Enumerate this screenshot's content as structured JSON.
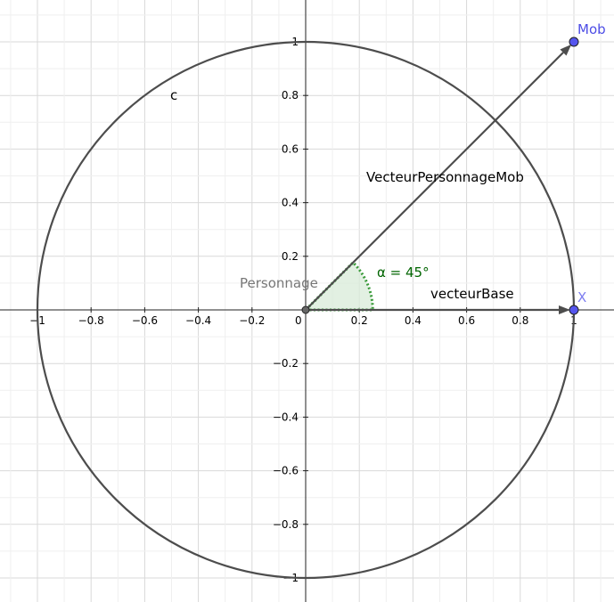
{
  "graph": {
    "x_ticks": [
      {
        "value": -1,
        "label": "−1"
      },
      {
        "value": -0.8,
        "label": "−0.8"
      },
      {
        "value": -0.6,
        "label": "−0.6"
      },
      {
        "value": -0.4,
        "label": "−0.4"
      },
      {
        "value": -0.2,
        "label": "−0.2"
      },
      {
        "value": 0,
        "label": "0"
      },
      {
        "value": 0.2,
        "label": "0.2"
      },
      {
        "value": 0.4,
        "label": "0.4"
      },
      {
        "value": 0.6,
        "label": "0.6"
      },
      {
        "value": 0.8,
        "label": "0.8"
      },
      {
        "value": 1,
        "label": "1"
      }
    ],
    "y_ticks": [
      {
        "value": 1,
        "label": "1"
      },
      {
        "value": 0.8,
        "label": "0.8"
      },
      {
        "value": 0.6,
        "label": "0.6"
      },
      {
        "value": 0.4,
        "label": "0.4"
      },
      {
        "value": 0.2,
        "label": "0.2"
      },
      {
        "value": -0.2,
        "label": "−0.2"
      },
      {
        "value": -0.4,
        "label": "−0.4"
      },
      {
        "value": -0.6,
        "label": "−0.6"
      },
      {
        "value": -0.8,
        "label": "−0.8"
      },
      {
        "value": -1,
        "label": "−1"
      }
    ],
    "grid_step": 0.2,
    "circle": {
      "label": "c",
      "center": [
        0,
        0
      ],
      "radius": 1,
      "color": "#4d4d4d"
    },
    "points": {
      "personnage": {
        "label": "Personnage",
        "x": 0,
        "y": 0,
        "color": "#666666",
        "label_color": "#777777"
      },
      "mob": {
        "label": "Mob",
        "x": 1,
        "y": 1,
        "color": "#5555ee",
        "label_color": "#4d4de6"
      },
      "x_point": {
        "label": "X",
        "x": 1,
        "y": 0,
        "color": "#5555ee",
        "label_color": "#7d7df0"
      }
    },
    "vectors": {
      "vecteur_personnage_mob": {
        "label": "VecteurPersonnageMob",
        "from": [
          0,
          0
        ],
        "to": [
          1,
          1
        ],
        "color": "#4d4d4d"
      },
      "vecteur_base": {
        "label": "vecteurBase",
        "from": [
          0,
          0
        ],
        "to": [
          1,
          0
        ],
        "color": "#4d4d4d"
      }
    },
    "angle": {
      "label": "α = 45°",
      "degrees": 45,
      "color": "#006400",
      "fill": "#d8ebd8"
    }
  }
}
